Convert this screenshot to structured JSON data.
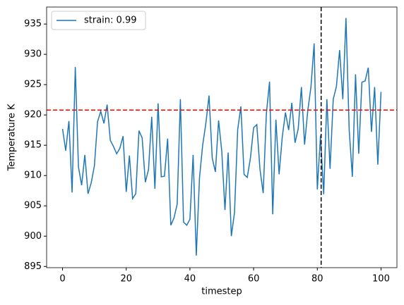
{
  "chart_data": {
    "type": "line",
    "x_label": "timestep",
    "y_label": "Temperature K",
    "x": [
      0,
      1,
      2,
      3,
      4,
      5,
      6,
      7,
      8,
      9,
      10,
      11,
      12,
      13,
      14,
      15,
      16,
      17,
      18,
      19,
      20,
      21,
      22,
      23,
      24,
      25,
      26,
      27,
      28,
      29,
      30,
      31,
      32,
      33,
      34,
      35,
      36,
      37,
      38,
      39,
      40,
      41,
      42,
      43,
      44,
      45,
      46,
      47,
      48,
      49,
      50,
      51,
      52,
      53,
      54,
      55,
      56,
      57,
      58,
      59,
      60,
      61,
      62,
      63,
      64,
      65,
      66,
      67,
      68,
      69,
      70,
      71,
      72,
      73,
      74,
      75,
      76,
      77,
      78,
      79,
      80,
      81,
      82,
      83,
      84,
      85,
      86,
      87,
      88,
      89,
      90,
      91,
      92,
      93,
      94,
      95,
      96,
      97,
      98,
      99,
      100
    ],
    "series": [
      {
        "name": "strain: 0.99",
        "color": "#1f77b4",
        "values": [
          917.7,
          914.1,
          919.0,
          907.2,
          927.9,
          911.4,
          908.4,
          913.4,
          907.0,
          908.8,
          911.6,
          918.9,
          920.6,
          918.6,
          921.7,
          915.8,
          914.8,
          913.6,
          914.5,
          916.5,
          907.3,
          913.3,
          906.2,
          907.0,
          917.4,
          916.2,
          908.9,
          911.0,
          919.7,
          907.8,
          921.9,
          909.8,
          909.9,
          916.1,
          901.8,
          903.0,
          905.3,
          922.6,
          902.3,
          901.8,
          902.8,
          913.4,
          896.8,
          909.6,
          915.0,
          918.6,
          923.2,
          912.9,
          910.6,
          919.1,
          914.0,
          904.3,
          913.8,
          900.0,
          903.9,
          917.6,
          921.4,
          910.2,
          909.7,
          912.9,
          917.9,
          918.4,
          911.0,
          907.1,
          920.2,
          925.5,
          903.6,
          919.2,
          910.2,
          916.4,
          920.4,
          917.5,
          922.0,
          915.4,
          917.7,
          924.6,
          915.1,
          920.7,
          924.6,
          931.8,
          907.7,
          916.6,
          906.9,
          922.6,
          911.1,
          922.6,
          924.7,
          930.7,
          922.6,
          936.0,
          917.6,
          909.8,
          926.7,
          913.6,
          925.4,
          925.6,
          927.8,
          917.2,
          924.6,
          911.8,
          923.8
        ]
      }
    ],
    "hline": {
      "value": 920.8,
      "color": "#ff0000"
    },
    "vline": {
      "value": 81.2,
      "color": "#000000"
    },
    "xlim": [
      -5,
      105
    ],
    "xticks": [
      0,
      20,
      40,
      60,
      80,
      100
    ],
    "ylim": [
      894.8,
      937.8
    ],
    "yticks": [
      895,
      900,
      905,
      910,
      915,
      920,
      925,
      930,
      935
    ],
    "legend": "upper-left",
    "grid": false
  }
}
